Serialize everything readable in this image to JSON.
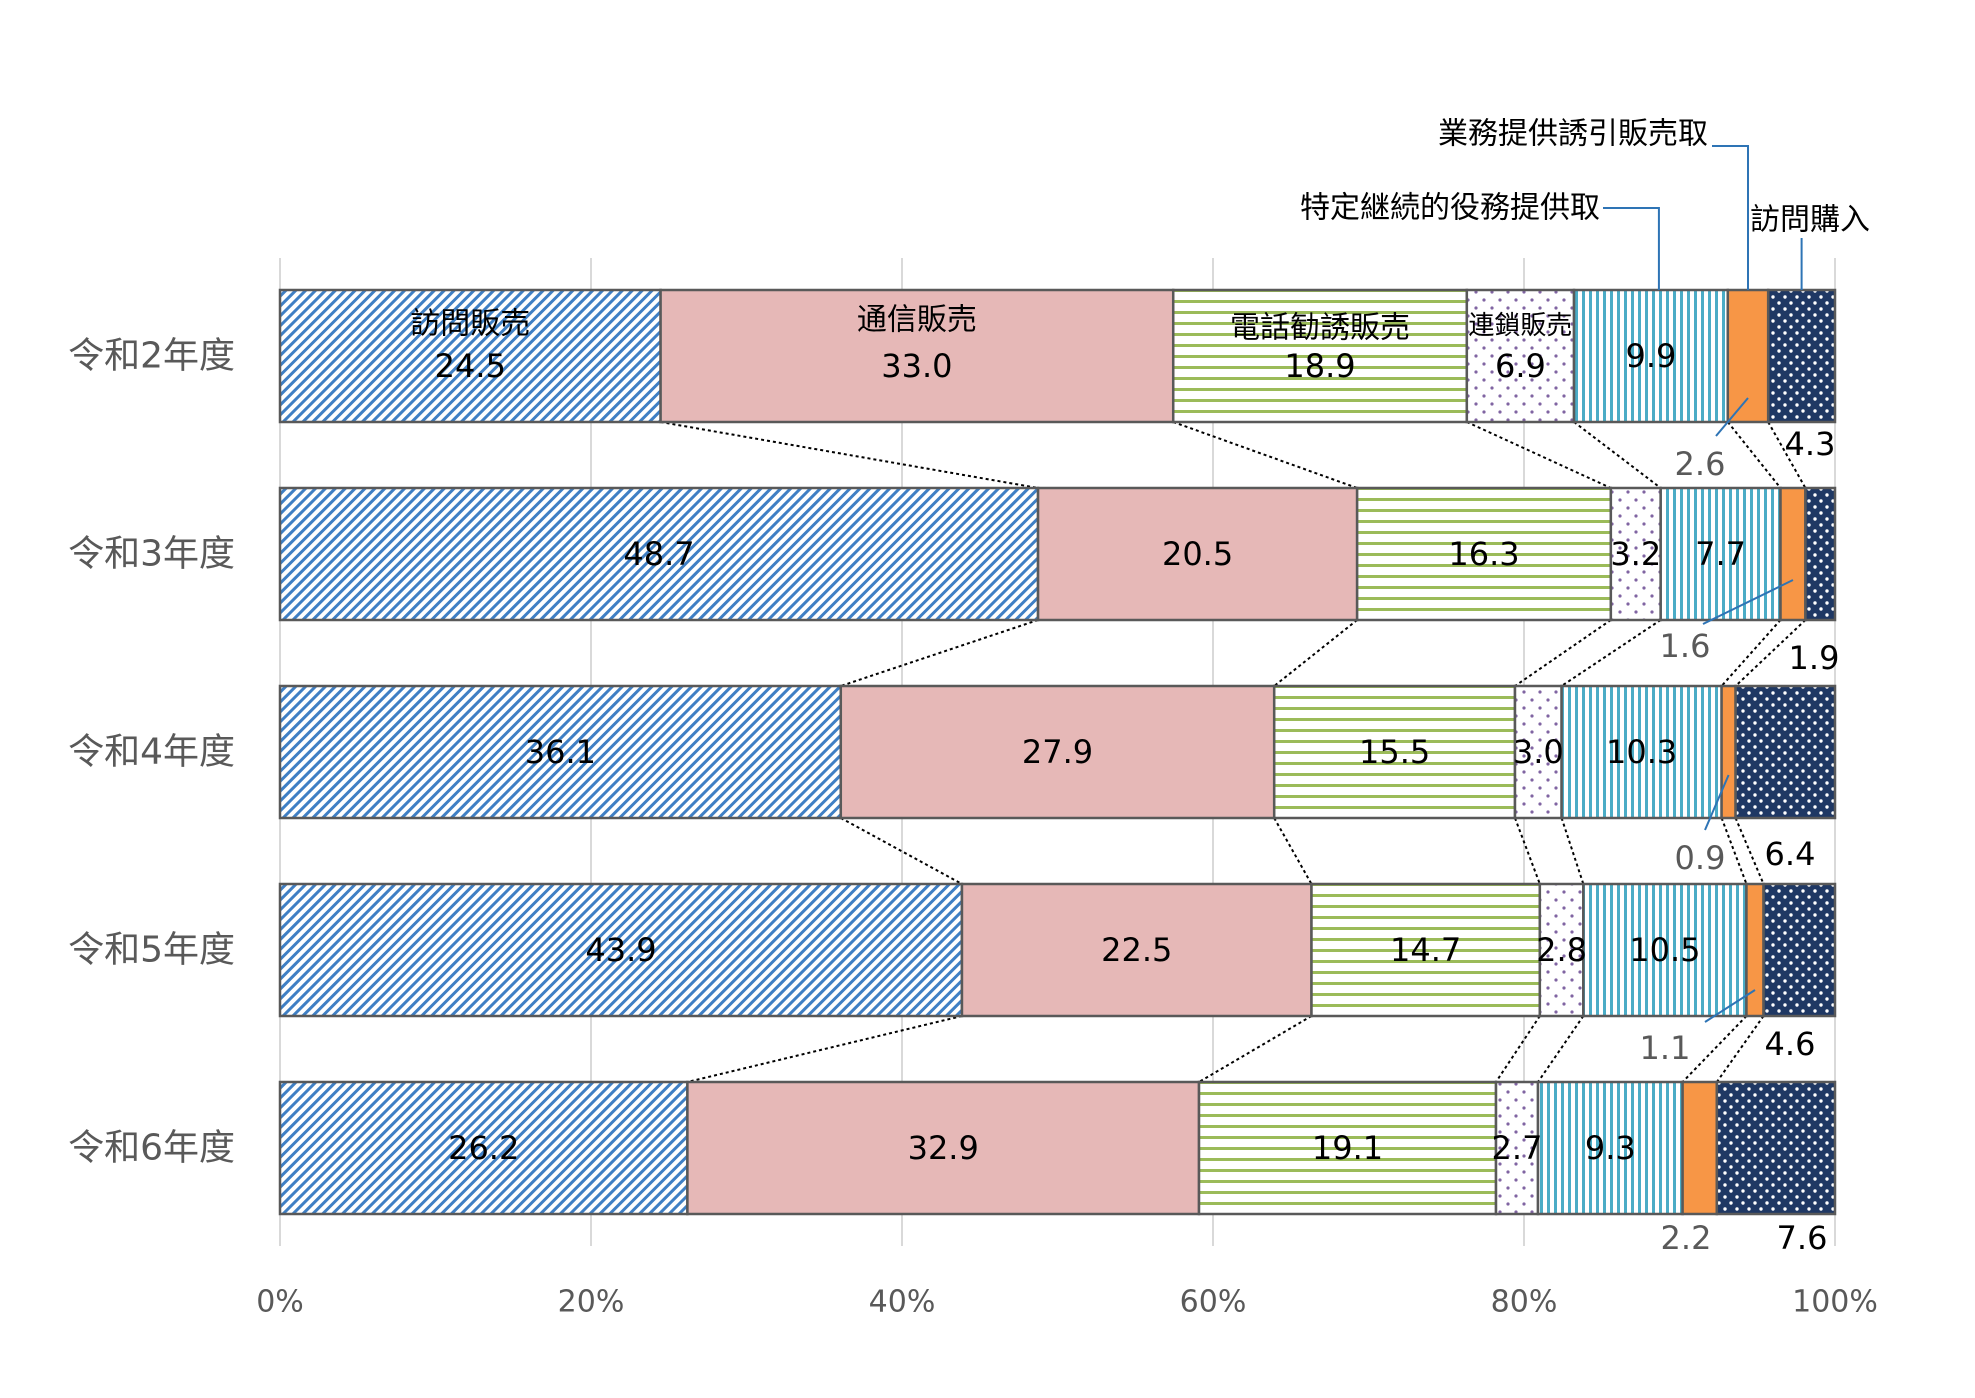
{
  "chart_data": {
    "type": "bar",
    "orientation": "horizontal",
    "stacked": true,
    "categories": [
      "令和2年度",
      "令和3年度",
      "令和4年度",
      "令和5年度",
      "令和6年度"
    ],
    "series": [
      {
        "name": "訪問販売",
        "values": [
          24.5,
          48.7,
          36.1,
          43.9,
          26.2
        ],
        "color": "#3f7fc4",
        "pattern": "diagonal-stripes"
      },
      {
        "name": "通信販売",
        "values": [
          33.0,
          20.5,
          27.9,
          22.5,
          32.9
        ],
        "color": "#e6b8b7",
        "pattern": "solid"
      },
      {
        "name": "電話勧誘販売",
        "values": [
          18.9,
          16.3,
          15.5,
          14.7,
          19.1
        ],
        "color": "#9bbb59",
        "pattern": "horizontal-stripes"
      },
      {
        "name": "連鎖販売",
        "values": [
          6.9,
          3.2,
          3.0,
          2.8,
          2.7
        ],
        "color": "#8064a2",
        "pattern": "sparse-dots"
      },
      {
        "name": "特定継続的役務提供取",
        "values": [
          9.9,
          7.7,
          10.3,
          10.5,
          9.3
        ],
        "color": "#4bacc6",
        "pattern": "vertical-stripes"
      },
      {
        "name": "業務提供誘引販売取",
        "values": [
          2.6,
          1.6,
          0.9,
          1.1,
          2.2
        ],
        "color": "#f79646",
        "pattern": "solid"
      },
      {
        "name": "訪問購入",
        "values": [
          4.3,
          1.9,
          6.4,
          4.6,
          7.6
        ],
        "color": "#1f3864",
        "pattern": "dots"
      }
    ],
    "value_labels": [
      [
        "24.5",
        "33.0",
        "18.9",
        "6.9",
        "9.9",
        "2.6",
        "4.3"
      ],
      [
        "48.7",
        "20.5",
        "16.3",
        "3.2",
        "7.7",
        "1.6",
        "1.9"
      ],
      [
        "36.1",
        "27.9",
        "15.5",
        "3.0",
        "10.3",
        "0.9",
        "6.4"
      ],
      [
        "43.9",
        "22.5",
        "14.7",
        "2.8",
        "10.5",
        "1.1",
        "4.6"
      ],
      [
        "26.2",
        "32.9",
        "19.1",
        "2.7",
        "9.3",
        "2.2",
        "7.6"
      ]
    ],
    "x_ticks": [
      "0%",
      "20%",
      "40%",
      "60%",
      "80%",
      "100%"
    ],
    "xlim": [
      0,
      100
    ],
    "title": "",
    "xlabel": "",
    "ylabel": "",
    "grid": "vertical",
    "series_connectors": "dotted",
    "legend": "in-chart labels"
  }
}
